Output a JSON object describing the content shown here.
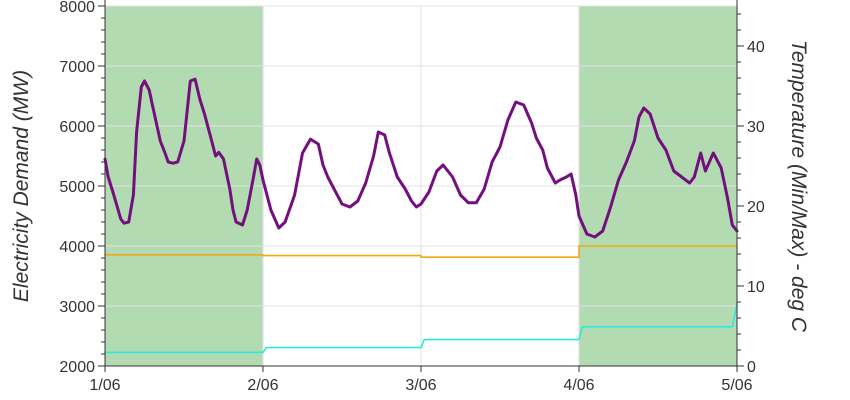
{
  "chart_data": {
    "type": "line",
    "title": "",
    "xlabel": "",
    "ylabel": "Electricity Demand (MW)",
    "y2label": "Temperature (Min/Max) - deg C",
    "xlim": [
      0,
      4
    ],
    "ylim": [
      2000,
      8000
    ],
    "y2lim": [
      0,
      45
    ],
    "x_ticks": [
      0,
      1,
      2,
      3,
      4
    ],
    "x_tick_labels": [
      "1/06",
      "2/06",
      "3/06",
      "4/06",
      "5/06"
    ],
    "y_ticks": [
      2000,
      3000,
      4000,
      5000,
      6000,
      7000,
      8000
    ],
    "y2_ticks": [
      0,
      10,
      20,
      30,
      40
    ],
    "grid": true,
    "legend": "none",
    "highlight_ranges": [
      {
        "x": [
          0,
          1
        ],
        "color": "#b2dbb2"
      },
      {
        "x": [
          3,
          4
        ],
        "color": "#b2dbb2"
      }
    ],
    "series": [
      {
        "axis": "left",
        "color": "#74107e",
        "x": [
          0,
          0.02,
          0.05,
          0.1,
          0.12,
          0.15,
          0.18,
          0.2,
          0.23,
          0.25,
          0.28,
          0.3,
          0.35,
          0.38,
          0.4,
          0.43,
          0.46,
          0.5,
          0.54,
          0.57,
          0.6,
          0.63,
          0.67,
          0.7,
          0.72,
          0.75,
          0.79,
          0.81,
          0.83,
          0.87,
          0.9,
          0.94,
          0.96,
          0.98,
          1.0,
          1.05,
          1.1,
          1.14,
          1.2,
          1.25,
          1.3,
          1.35,
          1.38,
          1.41,
          1.45,
          1.5,
          1.55,
          1.6,
          1.65,
          1.7,
          1.73,
          1.77,
          1.8,
          1.85,
          1.9,
          1.94,
          1.97,
          2.0,
          2.05,
          2.1,
          2.14,
          2.2,
          2.25,
          2.3,
          2.35,
          2.4,
          2.45,
          2.5,
          2.55,
          2.6,
          2.65,
          2.7,
          2.73,
          2.77,
          2.8,
          2.85,
          2.88,
          2.92,
          2.95,
          2.98,
          3.0,
          3.05,
          3.1,
          3.15,
          3.2,
          3.25,
          3.3,
          3.35,
          3.38,
          3.41,
          3.45,
          3.5,
          3.55,
          3.6,
          3.65,
          3.7,
          3.73,
          3.77,
          3.8,
          3.85,
          3.9,
          3.94,
          3.97,
          4.0
        ],
        "values": [
          5450,
          5150,
          4900,
          4450,
          4380,
          4400,
          4850,
          5900,
          6650,
          6750,
          6600,
          6350,
          5750,
          5550,
          5400,
          5380,
          5400,
          5750,
          6750,
          6780,
          6450,
          6200,
          5800,
          5500,
          5560,
          5450,
          4950,
          4600,
          4400,
          4350,
          4600,
          5150,
          5450,
          5350,
          5100,
          4600,
          4300,
          4400,
          4850,
          5550,
          5780,
          5700,
          5350,
          5150,
          4950,
          4700,
          4650,
          4750,
          5050,
          5500,
          5900,
          5850,
          5550,
          5150,
          4950,
          4750,
          4650,
          4700,
          4900,
          5250,
          5350,
          5150,
          4850,
          4720,
          4720,
          4950,
          5400,
          5650,
          6100,
          6400,
          6350,
          6050,
          5800,
          5600,
          5300,
          5050,
          5100,
          5150,
          5200,
          4850,
          4500,
          4200,
          4150,
          4250,
          4650,
          5100,
          5400,
          5750,
          6150,
          6300,
          6200,
          5800,
          5600,
          5250,
          5150,
          5050,
          5150,
          5550,
          5250,
          5550,
          5300,
          4800,
          4350,
          4250
        ],
        "name": ""
      },
      {
        "axis": "right",
        "color": "#f0a818",
        "x": [
          0,
          1,
          1,
          2,
          2,
          3,
          3,
          4
        ],
        "values": [
          13.9,
          13.9,
          13.8,
          13.8,
          13.6,
          13.6,
          15.0,
          15.0
        ],
        "name": ""
      },
      {
        "axis": "right",
        "color": "#2ee6e0",
        "x": [
          0,
          1,
          1.02,
          2,
          2.02,
          3,
          3.02,
          3.97,
          4
        ],
        "values": [
          1.7,
          1.7,
          2.3,
          2.3,
          3.3,
          3.3,
          4.9,
          4.9,
          7.8
        ],
        "name": ""
      }
    ]
  }
}
